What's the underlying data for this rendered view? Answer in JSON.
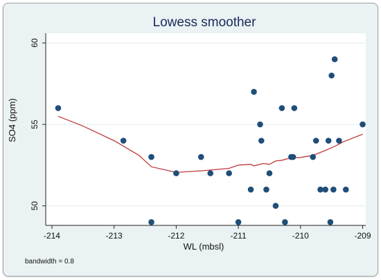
{
  "chart_data": {
    "type": "scatter",
    "title": "Lowess smoother",
    "xlabel": "WL (mbsl)",
    "ylabel": "SO4 (ppm)",
    "note": "bandwidth = 0.8",
    "xlim": [
      -214.1,
      -208.95
    ],
    "ylim": [
      48.8,
      60.6
    ],
    "xticks": [
      -214,
      -213,
      -212,
      -211,
      -210,
      -209
    ],
    "yticks": [
      50,
      55,
      60
    ],
    "grid": true,
    "colors": {
      "points": "#1f4e79",
      "line": "#c0383a",
      "plot_bg": "#ffffff",
      "frame_bg": "#eaf2f3",
      "grid": "#e4eaee"
    },
    "series": [
      {
        "kind": "points",
        "values": [
          {
            "x": -213.9,
            "y": 56
          },
          {
            "x": -212.85,
            "y": 54
          },
          {
            "x": -212.4,
            "y": 53
          },
          {
            "x": -212.4,
            "y": 49
          },
          {
            "x": -212.0,
            "y": 52
          },
          {
            "x": -211.6,
            "y": 53
          },
          {
            "x": -211.45,
            "y": 52
          },
          {
            "x": -211.15,
            "y": 52
          },
          {
            "x": -211.0,
            "y": 49
          },
          {
            "x": -210.8,
            "y": 51
          },
          {
            "x": -210.75,
            "y": 57
          },
          {
            "x": -210.65,
            "y": 55
          },
          {
            "x": -210.63,
            "y": 54
          },
          {
            "x": -210.55,
            "y": 51
          },
          {
            "x": -210.5,
            "y": 52
          },
          {
            "x": -210.4,
            "y": 50
          },
          {
            "x": -210.3,
            "y": 56
          },
          {
            "x": -210.25,
            "y": 49
          },
          {
            "x": -210.15,
            "y": 53
          },
          {
            "x": -210.12,
            "y": 53
          },
          {
            "x": -210.1,
            "y": 56
          },
          {
            "x": -209.8,
            "y": 53
          },
          {
            "x": -209.75,
            "y": 54
          },
          {
            "x": -209.68,
            "y": 51
          },
          {
            "x": -209.6,
            "y": 51
          },
          {
            "x": -209.55,
            "y": 54
          },
          {
            "x": -209.52,
            "y": 49
          },
          {
            "x": -209.5,
            "y": 58
          },
          {
            "x": -209.47,
            "y": 51
          },
          {
            "x": -209.45,
            "y": 59
          },
          {
            "x": -209.38,
            "y": 54
          },
          {
            "x": -209.27,
            "y": 51
          },
          {
            "x": -209.0,
            "y": 55
          }
        ]
      },
      {
        "kind": "lowess",
        "values": [
          {
            "x": -213.9,
            "y": 55.5
          },
          {
            "x": -213.5,
            "y": 54.9
          },
          {
            "x": -213.0,
            "y": 54.0
          },
          {
            "x": -212.6,
            "y": 53.1
          },
          {
            "x": -212.4,
            "y": 52.4
          },
          {
            "x": -212.0,
            "y": 52.05
          },
          {
            "x": -211.6,
            "y": 52.15
          },
          {
            "x": -211.15,
            "y": 52.3
          },
          {
            "x": -211.0,
            "y": 52.5
          },
          {
            "x": -210.8,
            "y": 52.55
          },
          {
            "x": -210.75,
            "y": 52.45
          },
          {
            "x": -210.6,
            "y": 52.6
          },
          {
            "x": -210.5,
            "y": 52.55
          },
          {
            "x": -210.4,
            "y": 52.75
          },
          {
            "x": -210.3,
            "y": 52.8
          },
          {
            "x": -210.15,
            "y": 52.95
          },
          {
            "x": -210.0,
            "y": 52.97
          },
          {
            "x": -209.8,
            "y": 53.1
          },
          {
            "x": -209.6,
            "y": 53.4
          },
          {
            "x": -209.45,
            "y": 53.65
          },
          {
            "x": -209.3,
            "y": 53.95
          },
          {
            "x": -209.0,
            "y": 54.4
          }
        ]
      }
    ]
  }
}
